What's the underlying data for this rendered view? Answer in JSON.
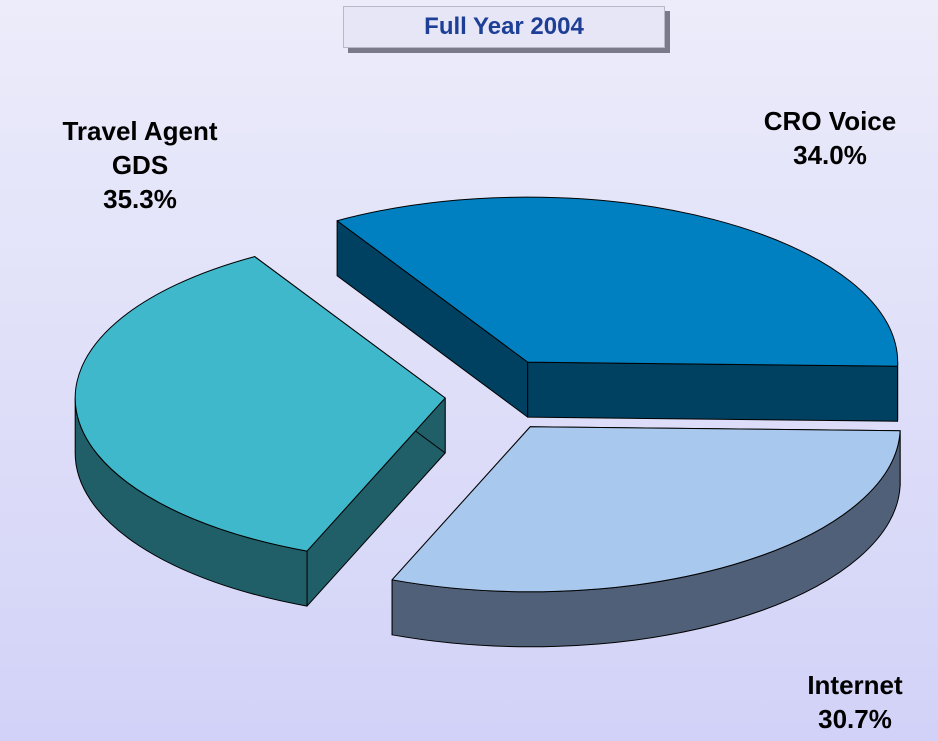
{
  "chart_data": {
    "type": "pie",
    "title": "Full Year 2004",
    "categories": [
      "CRO Voice",
      "Internet",
      "Travel Agent GDS"
    ],
    "values": [
      34.0,
      30.7,
      35.3
    ],
    "value_labels": [
      "34.0%",
      "30.7%",
      "35.3%"
    ],
    "colors": [
      "#0080c0",
      "#a8c8ee",
      "#40b8cc"
    ],
    "side_colors": [
      "#004060",
      "#506078",
      "#205e68"
    ]
  }
}
